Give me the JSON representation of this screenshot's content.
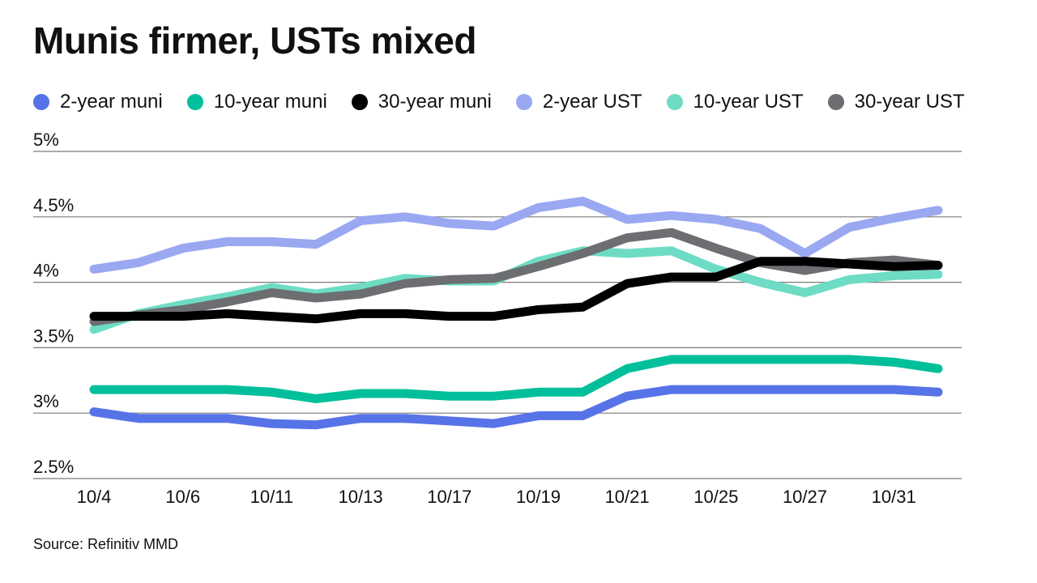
{
  "chart_data": {
    "type": "line",
    "title": "Munis firmer, USTs mixed",
    "xlabel": "",
    "ylabel": "",
    "ylim": [
      2.5,
      5
    ],
    "y_ticks": [
      "2.5%",
      "3%",
      "3.5%",
      "4%",
      "4.5%",
      "5%"
    ],
    "y_tick_values": [
      2.5,
      3,
      3.5,
      4,
      4.5,
      5
    ],
    "x_tick_labels": [
      "10/4",
      "10/6",
      "10/11",
      "10/13",
      "10/17",
      "10/19",
      "10/21",
      "10/25",
      "10/27",
      "10/31"
    ],
    "x_tick_indices": [
      0,
      2,
      4,
      6,
      8,
      10,
      12,
      14,
      16,
      18
    ],
    "x_count": 20,
    "grid": "horizontal",
    "legend_position": "top",
    "series": [
      {
        "name": "2-year UST",
        "color": "#9aa8f2",
        "values": [
          4.1,
          4.15,
          4.26,
          4.31,
          4.31,
          4.29,
          4.47,
          4.5,
          4.45,
          4.43,
          4.57,
          4.62,
          4.48,
          4.51,
          4.48,
          4.41,
          4.22,
          4.42,
          4.49,
          4.55
        ]
      },
      {
        "name": "10-year UST",
        "color": "#6edcc4",
        "values": [
          3.64,
          3.76,
          3.83,
          3.89,
          3.96,
          3.91,
          3.96,
          4.03,
          4.01,
          4.01,
          4.16,
          4.24,
          4.22,
          4.24,
          4.1,
          4.0,
          3.92,
          4.02,
          4.05,
          4.06
        ]
      },
      {
        "name": "30-year UST",
        "color": "#6d6e71",
        "values": [
          3.7,
          3.75,
          3.79,
          3.85,
          3.92,
          3.88,
          3.91,
          3.99,
          4.02,
          4.03,
          4.12,
          4.22,
          4.34,
          4.38,
          4.26,
          4.15,
          4.09,
          4.15,
          4.17,
          4.13
        ]
      },
      {
        "name": "30-year muni",
        "color": "#000000",
        "values": [
          3.74,
          3.74,
          3.74,
          3.76,
          3.74,
          3.72,
          3.76,
          3.76,
          3.74,
          3.74,
          3.79,
          3.81,
          3.99,
          4.04,
          4.04,
          4.16,
          4.16,
          4.14,
          4.12,
          4.13
        ]
      },
      {
        "name": "10-year muni",
        "color": "#00bf9a",
        "values": [
          3.18,
          3.18,
          3.18,
          3.18,
          3.16,
          3.11,
          3.15,
          3.15,
          3.13,
          3.13,
          3.16,
          3.16,
          3.34,
          3.41,
          3.41,
          3.41,
          3.41,
          3.41,
          3.39,
          3.34
        ]
      },
      {
        "name": "2-year muni",
        "color": "#5773e8",
        "values": [
          3.01,
          2.96,
          2.96,
          2.96,
          2.92,
          2.91,
          2.96,
          2.96,
          2.94,
          2.92,
          2.98,
          2.98,
          3.13,
          3.18,
          3.18,
          3.18,
          3.18,
          3.18,
          3.18,
          3.16
        ]
      }
    ]
  },
  "legend": [
    {
      "label": "2-year muni",
      "color": "#5773e8"
    },
    {
      "label": "10-year muni",
      "color": "#00bf9a"
    },
    {
      "label": "30-year muni",
      "color": "#000000"
    },
    {
      "label": "2-year UST",
      "color": "#9aa8f2"
    },
    {
      "label": "10-year UST",
      "color": "#6edcc4"
    },
    {
      "label": "30-year UST",
      "color": "#6d6e71"
    }
  ],
  "source": "Source: Refinitiv MMD"
}
